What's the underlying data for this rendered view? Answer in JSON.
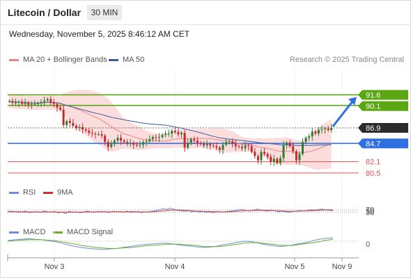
{
  "header": {
    "title": "Litecoin / Dollar",
    "interval": "30 MIN",
    "datetime": "Wednesday, November 5, 2025 8:46:12 AM CET",
    "credit": "Research © 2025 Trading Central"
  },
  "legend": {
    "ma20": "MA 20 + Bollinger Bands",
    "ma50": "MA 50",
    "rsi": "RSI",
    "ma9": "9MA",
    "macd": "MACD",
    "macd_signal": "MACD Signal"
  },
  "colors": {
    "ma20": "#f08080",
    "ma50": "#3a5a9a",
    "bollinger": "#fbd5d5",
    "up": "#2e7d32",
    "down": "#c62828",
    "resistance": "#5aa613",
    "current": "#2c2c2c",
    "pivot": "#2f6fdf",
    "support": "#e05050",
    "rsi": "#6a8ddf",
    "rsi_ma": "#d03030",
    "macd": "#6a8ddf",
    "macd_signal": "#6cab2a"
  },
  "chart_data": [
    {
      "type": "candlestick",
      "name": "price",
      "x_ticks": [
        "Nov 3",
        "Nov 4",
        "Nov 5",
        "Nov 9"
      ],
      "ylim": [
        79.2,
        95.2
      ],
      "close": [
        90.7,
        90.5,
        90.5,
        90.6,
        90.3,
        90.5,
        90.2,
        90.3,
        90.3,
        90.4,
        90.6,
        90.8,
        91.0,
        90.5,
        90.3,
        89.8,
        89.5,
        87.3,
        87.9,
        87.6,
        87.2,
        86.9,
        87.0,
        86.7,
        86.5,
        86.2,
        86.1,
        86.0,
        86.0,
        85.8,
        84.9,
        84.2,
        84.6,
        85.1,
        85.5,
        85.1,
        84.9,
        84.7,
        84.8,
        84.5,
        84.4,
        84.5,
        84.9,
        85.0,
        85.3,
        85.6,
        85.5,
        85.6,
        85.9,
        86.1,
        86.1,
        86.5,
        86.3,
        86.0,
        86.2,
        84.1,
        84.8,
        85.3,
        85.1,
        84.8,
        84.6,
        84.4,
        84.6,
        84.4,
        84.3,
        84.1,
        83.8,
        84.5,
        84.9,
        85.0,
        84.6,
        84.3,
        84.2,
        84.0,
        84.4,
        84.3,
        83.5,
        82.9,
        82.3,
        83.5,
        83.2,
        82.8,
        82.1,
        82.5,
        81.9,
        82.6,
        84.5,
        84.8,
        84.3,
        83.6,
        82.3,
        83.2,
        84.9,
        85.5,
        85.7,
        86.4,
        86.1,
        86.6,
        86.7,
        86.8,
        86.6,
        86.9
      ],
      "levels": [
        {
          "label": "91.6",
          "value": 91.6,
          "kind": "resistance"
        },
        {
          "label": "90.1",
          "value": 90.1,
          "kind": "resistance"
        },
        {
          "label": "86.9",
          "value": 86.9,
          "kind": "current"
        },
        {
          "label": "84.7",
          "value": 84.7,
          "kind": "pivot"
        },
        {
          "label": "82.1",
          "value": 82.1,
          "kind": "support"
        },
        {
          "label": "80.5",
          "value": 80.5,
          "kind": "support"
        }
      ],
      "target": 91.6
    },
    {
      "type": "line",
      "name": "rsi",
      "yticks": [
        "70",
        "50",
        "30"
      ],
      "ylim": [
        0,
        100
      ],
      "series": [
        {
          "name": "RSI",
          "values": [
            47,
            40,
            44,
            38,
            42,
            46,
            36,
            40,
            43,
            38,
            47,
            42,
            39,
            44,
            35,
            41,
            30,
            45,
            38,
            42,
            36,
            40,
            47,
            41,
            38,
            44,
            40,
            42,
            37,
            45,
            41,
            43,
            39,
            46,
            38,
            41,
            44,
            36,
            42,
            39,
            47,
            50,
            55,
            62,
            58,
            66,
            60,
            52,
            48,
            45,
            50,
            42,
            46,
            40,
            44,
            38,
            41,
            36,
            43,
            40,
            42,
            45,
            48,
            52,
            55,
            58,
            50,
            48,
            52,
            60,
            54,
            50,
            47,
            53,
            49,
            42,
            46,
            41,
            39,
            44,
            48,
            50,
            47,
            52,
            55,
            53,
            57,
            60,
            55,
            52,
            50
          ]
        },
        {
          "name": "9MA",
          "values": [
            44,
            43,
            42,
            42,
            41,
            41,
            41,
            41,
            41,
            40,
            41,
            41,
            41,
            41,
            40,
            40,
            39,
            40,
            40,
            40,
            40,
            40,
            41,
            41,
            41,
            41,
            42,
            42,
            41,
            42,
            42,
            42,
            41,
            42,
            42,
            42,
            41,
            41,
            41,
            41,
            42,
            44,
            46,
            49,
            51,
            53,
            54,
            54,
            53,
            52,
            51,
            49,
            47,
            46,
            45,
            44,
            43,
            42,
            42,
            41,
            41,
            42,
            43,
            45,
            47,
            49,
            50,
            50,
            51,
            52,
            53,
            52,
            51,
            51,
            50,
            49,
            48,
            46,
            45,
            45,
            46,
            47,
            48,
            49,
            50,
            51,
            52,
            54,
            55,
            55,
            54
          ]
        }
      ]
    },
    {
      "type": "line",
      "name": "macd",
      "yticks": [
        "0"
      ],
      "series": [
        {
          "name": "MACD",
          "values": [
            0.1,
            0.3,
            0.4,
            0.5,
            0.4,
            0.3,
            0.1,
            -0.1,
            -0.4,
            -0.8,
            -1.1,
            -1.3,
            -1.5,
            -1.6,
            -1.7,
            -1.6,
            -1.5,
            -1.3,
            -1.1,
            -0.9,
            -0.7,
            -0.6,
            -0.5,
            -0.4,
            -0.5,
            -0.7,
            -0.9,
            -1.0,
            -1.2,
            -1.3,
            -1.2,
            -1.0,
            -0.7,
            -0.5,
            -0.2,
            0.0,
            -0.1,
            -0.4,
            -0.7,
            -0.9,
            -1.1,
            -1.0,
            -0.8,
            -0.5,
            -0.3,
            0.1,
            0.4,
            0.6,
            0.7
          ]
        },
        {
          "name": "MACD Signal",
          "values": [
            0.0,
            0.1,
            0.2,
            0.3,
            0.3,
            0.3,
            0.2,
            0.1,
            -0.1,
            -0.4,
            -0.6,
            -0.9,
            -1.1,
            -1.3,
            -1.4,
            -1.5,
            -1.5,
            -1.4,
            -1.3,
            -1.2,
            -1.0,
            -0.9,
            -0.8,
            -0.7,
            -0.6,
            -0.6,
            -0.7,
            -0.8,
            -0.9,
            -1.1,
            -1.1,
            -1.1,
            -1.0,
            -0.8,
            -0.6,
            -0.4,
            -0.3,
            -0.3,
            -0.5,
            -0.6,
            -0.8,
            -0.9,
            -0.9,
            -0.7,
            -0.5,
            -0.3,
            -0.1,
            0.2,
            0.4
          ]
        }
      ]
    }
  ]
}
